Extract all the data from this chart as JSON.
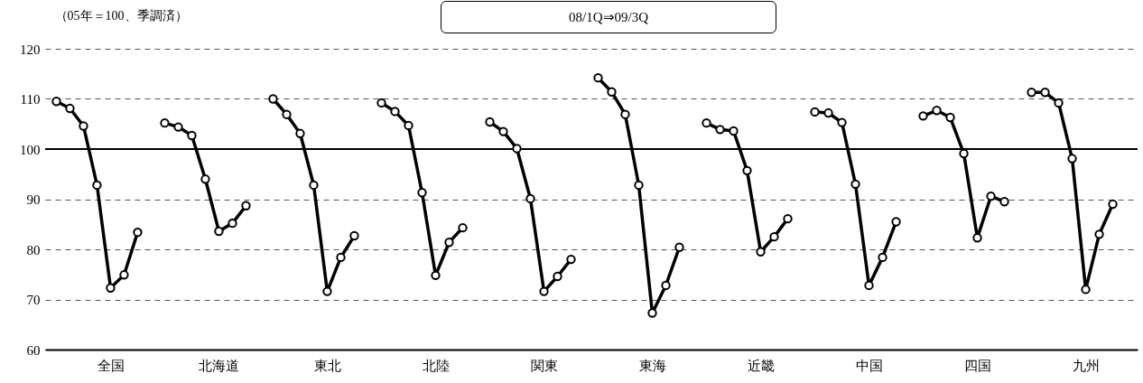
{
  "chart_data": {
    "type": "line",
    "ylabel": "（05年＝100、季調済）",
    "annotations": [
      "08/1Q⇒09/3Q"
    ],
    "categories": [
      null,
      null,
      null,
      null,
      "全国",
      null,
      null,
      null,
      null,
      null,
      null,
      null,
      "北海道",
      null,
      null,
      null,
      null,
      null,
      null,
      null,
      "東北",
      null,
      null,
      null,
      null,
      null,
      null,
      null,
      "北陸",
      null,
      null,
      null,
      null,
      null,
      null,
      null,
      "関東",
      null,
      null,
      null,
      null,
      null,
      null,
      null,
      "東海",
      null,
      null,
      null,
      null,
      null,
      null,
      null,
      "近畿",
      null,
      null,
      null,
      null,
      null,
      null,
      null,
      "中国",
      null,
      null,
      null,
      null,
      null,
      null,
      null,
      "四国",
      null,
      null,
      null,
      null,
      null,
      null,
      null,
      "九州",
      null,
      null,
      null
    ],
    "series": [
      {
        "color": "#000000",
        "values": [
          109.5,
          108.1,
          104.6,
          92.8,
          72.3,
          74.9,
          83.4,
          null,
          105.2,
          104.4,
          102.7,
          94.0,
          83.6,
          85.2,
          88.7,
          null,
          110.0,
          106.9,
          103.1,
          92.8,
          71.6,
          78.4,
          82.7,
          null,
          109.2,
          107.5,
          104.7,
          91.3,
          74.8,
          81.4,
          84.3,
          null,
          105.4,
          103.5,
          100.1,
          90.1,
          71.6,
          74.6,
          78.0,
          null,
          114.2,
          111.4,
          106.9,
          92.8,
          67.3,
          72.8,
          80.4,
          null,
          105.2,
          103.9,
          103.6,
          95.7,
          79.5,
          82.5,
          86.1,
          null,
          107.4,
          107.2,
          105.3,
          93.0,
          72.8,
          78.4,
          85.5,
          null,
          106.6,
          107.7,
          106.3,
          99.1,
          82.3,
          90.6,
          89.5,
          null,
          111.3,
          111.3,
          109.2,
          98.1,
          72.0,
          83.0,
          89.0,
          null
        ]
      }
    ],
    "ylim": [
      60,
      120
    ],
    "yticks": [
      60,
      70,
      80,
      90,
      100,
      110,
      120
    ],
    "grid": "y",
    "marker": "circle",
    "line_style": "solid",
    "ref_lines": [
      {
        "axis": "y",
        "value": 100,
        "color": "#000000"
      }
    ]
  }
}
